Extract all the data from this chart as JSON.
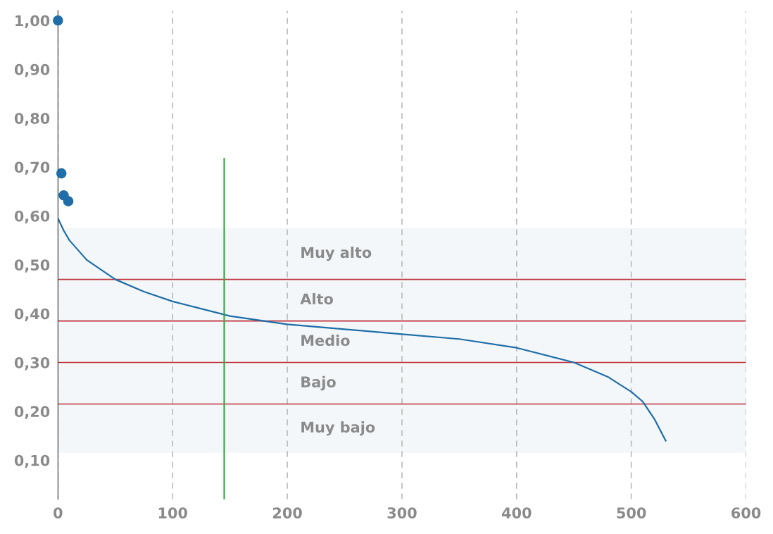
{
  "chart_data": {
    "type": "line",
    "xlim": [
      0,
      600
    ],
    "xticks": [
      0,
      100,
      200,
      300,
      400,
      500,
      600
    ],
    "ylim": [
      0.02,
      1.02
    ],
    "yticks": [
      {
        "value": 0.1,
        "label": "0,10"
      },
      {
        "value": 0.2,
        "label": "0,20"
      },
      {
        "value": 0.3,
        "label": "0,30"
      },
      {
        "value": 0.4,
        "label": "0,40"
      },
      {
        "value": 0.5,
        "label": "0,50"
      },
      {
        "value": 0.6,
        "label": "0,60"
      },
      {
        "value": 0.7,
        "label": "0,70"
      },
      {
        "value": 0.8,
        "label": "0,80"
      },
      {
        "value": 0.9,
        "label": "0,90"
      },
      {
        "value": 1.0,
        "label": "1,00"
      }
    ],
    "grid": "x",
    "series": [
      {
        "color": "#1f6ea8",
        "x": [
          0,
          5,
          10,
          25,
          50,
          75,
          100,
          150,
          200,
          250,
          300,
          350,
          400,
          450,
          480,
          500,
          510,
          520,
          530
        ],
        "values": [
          0.595,
          0.57,
          0.55,
          0.51,
          0.47,
          0.445,
          0.425,
          0.395,
          0.378,
          0.368,
          0.358,
          0.348,
          0.33,
          0.3,
          0.27,
          0.24,
          0.22,
          0.185,
          0.14
        ]
      },
      {
        "type": "scatter",
        "color": "#1f6ea8",
        "x": [
          0,
          3,
          5,
          9
        ],
        "values": [
          1.0,
          0.687,
          0.642,
          0.63
        ]
      },
      {
        "type": "line",
        "color": "#3aa845",
        "x": [
          145,
          145
        ],
        "values": [
          0.02,
          0.717
        ]
      }
    ],
    "bands": [
      {
        "axis": "y",
        "from": 0.47,
        "to": 0.575,
        "label": "Muy alto",
        "color": "#f3f7f9"
      },
      {
        "axis": "y",
        "from": 0.385,
        "to": 0.47,
        "label": "Alto",
        "color": "#f3f7f9"
      },
      {
        "axis": "y",
        "from": 0.3,
        "to": 0.385,
        "label": "Medio",
        "color": "#f3f7f9"
      },
      {
        "axis": "y",
        "from": 0.215,
        "to": 0.3,
        "label": "Bajo",
        "color": "#f3f7f9"
      },
      {
        "axis": "y",
        "from": 0.115,
        "to": 0.215,
        "label": "Muy bajo",
        "color": "#f3f7f9"
      }
    ],
    "ref_lines": [
      {
        "axis": "y",
        "value": 0.47,
        "color": "#c0303b"
      },
      {
        "axis": "y",
        "value": 0.385,
        "color": "#c0303b"
      },
      {
        "axis": "y",
        "value": 0.3,
        "color": "#c0303b"
      },
      {
        "axis": "y",
        "value": 0.215,
        "color": "#c0303b"
      }
    ]
  }
}
